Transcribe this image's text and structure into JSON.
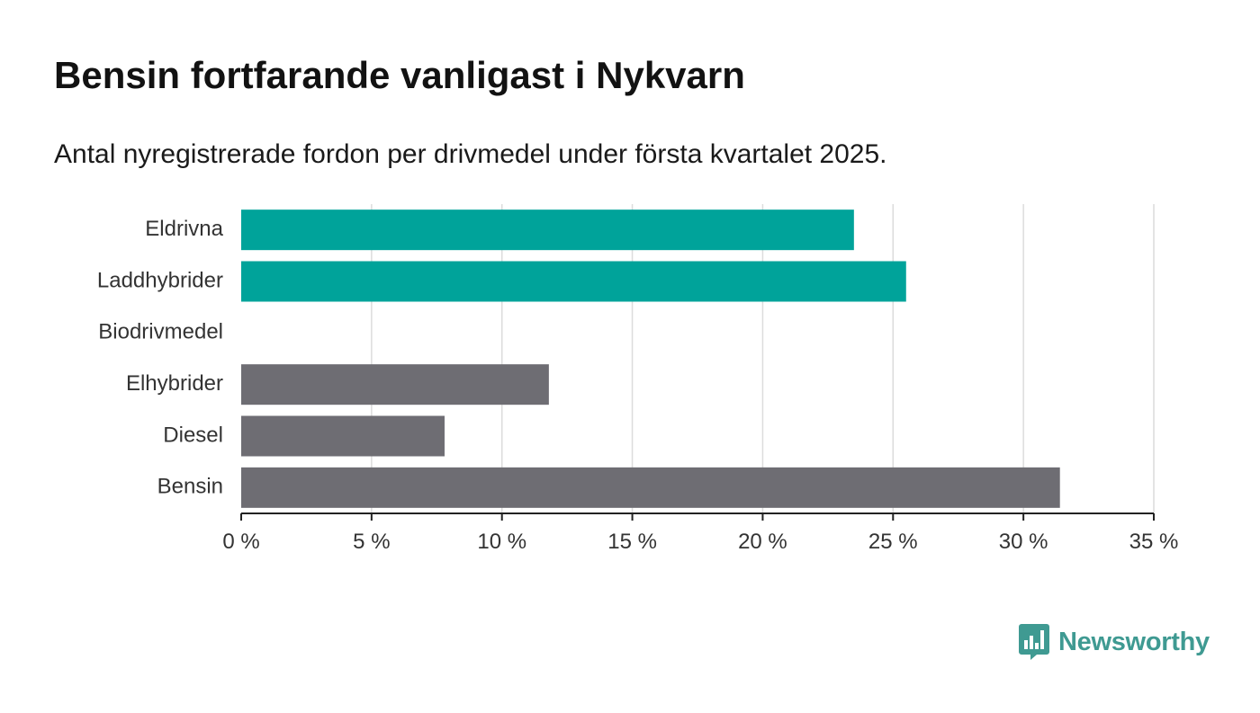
{
  "header": {
    "title": "Bensin fortfarande vanligast i Nykvarn",
    "subtitle": "Antal nyregistrerade fordon per drivmedel under första kvartalet 2025."
  },
  "chart_data": {
    "type": "bar",
    "orientation": "horizontal",
    "title": "Bensin fortfarande vanligast i Nykvarn",
    "subtitle": "Antal nyregistrerade fordon per drivmedel under första kvartalet 2025.",
    "categories": [
      "Eldrivna",
      "Laddhybrider",
      "Biodrivmedel",
      "Elhybrider",
      "Diesel",
      "Bensin"
    ],
    "values": [
      23.5,
      25.5,
      0,
      11.8,
      7.8,
      31.4
    ],
    "colors": [
      "#00a39a",
      "#00a39a",
      "#00a39a",
      "#6e6d73",
      "#6e6d73",
      "#6e6d73"
    ],
    "xlim": [
      0,
      35
    ],
    "ticks": [
      0,
      5,
      10,
      15,
      20,
      25,
      30,
      35
    ],
    "tick_labels": [
      "0 %",
      "5 %",
      "10 %",
      "15 %",
      "20 %",
      "25 %",
      "30 %",
      "35 %"
    ],
    "grid": "vertical",
    "xlabel": "",
    "ylabel": ""
  },
  "logo": {
    "text": "Newsworthy",
    "color": "#3f9a92",
    "icon": "bar-chart-speech-bubble-icon"
  }
}
